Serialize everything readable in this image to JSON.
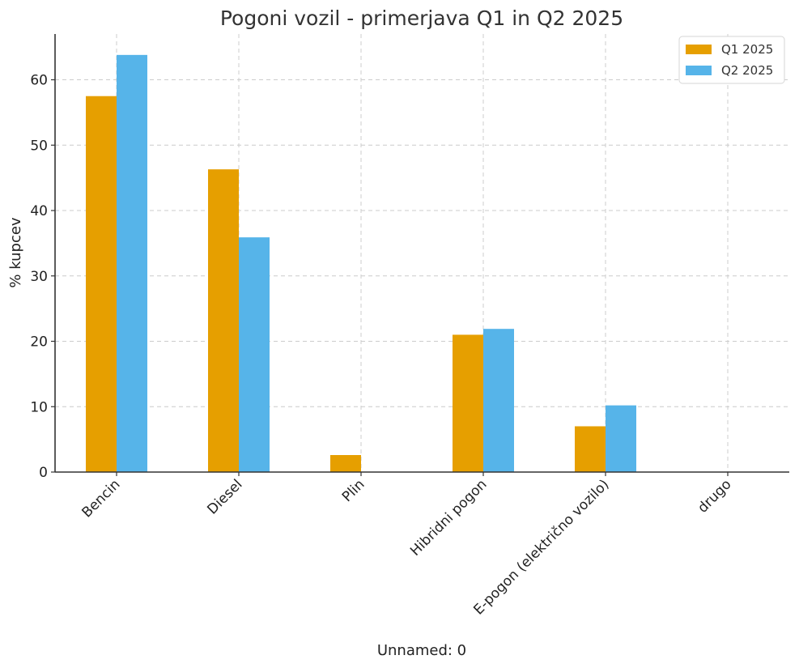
{
  "chart_data": {
    "type": "bar",
    "title": "Pogoni vozil - primerjava Q1 in Q2 2025",
    "xlabel": "Unnamed: 0",
    "ylabel": "% kupcev",
    "categories": [
      "Bencin",
      "Diesel",
      "Plin",
      "Hibridni pogon",
      "E-pogon (električno vozilo)",
      "drugo"
    ],
    "series": [
      {
        "name": "Q1 2025",
        "color": "#E69F00",
        "values": [
          57.5,
          46.3,
          2.6,
          21.0,
          7.0,
          0.0
        ]
      },
      {
        "name": "Q2 2025",
        "color": "#56B4E9",
        "values": [
          63.8,
          35.9,
          0.0,
          21.9,
          10.2,
          0.0
        ]
      }
    ],
    "ylim": [
      0,
      67
    ],
    "yticks": [
      "0",
      "10",
      "20",
      "30",
      "40",
      "50",
      "60"
    ],
    "grid": true,
    "legend_position": "top-right"
  }
}
